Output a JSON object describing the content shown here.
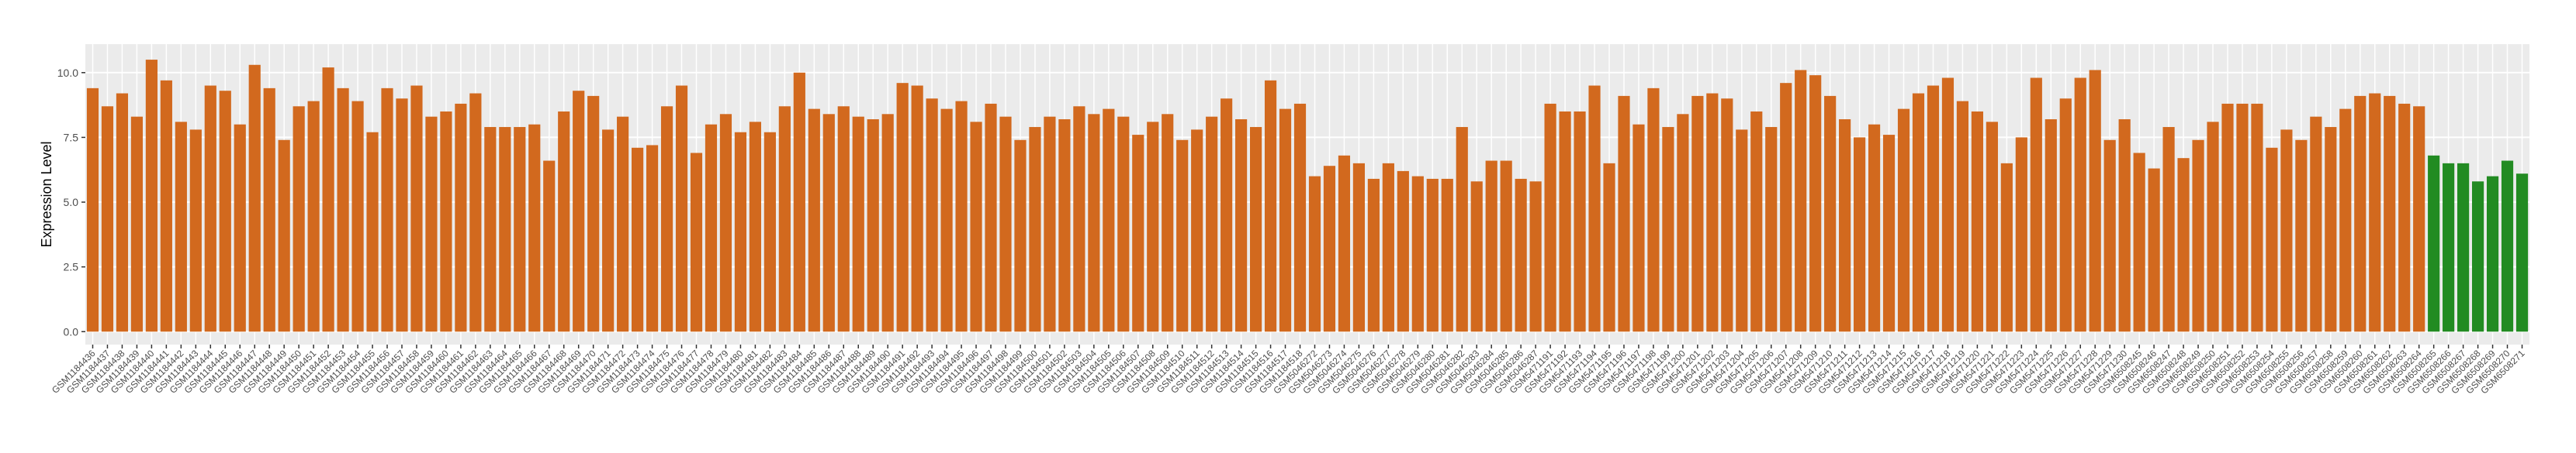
{
  "chart_data": {
    "type": "bar",
    "y_label": "Expression Level",
    "categories": [
      "GSM1184436",
      "GSM1184437",
      "GSM1184438",
      "GSM1184439",
      "GSM1184440",
      "GSM1184441",
      "GSM1184442",
      "GSM1184443",
      "GSM1184444",
      "GSM1184445",
      "GSM1184446",
      "GSM1184447",
      "GSM1184448",
      "GSM1184449",
      "GSM1184450",
      "GSM1184451",
      "GSM1184452",
      "GSM1184453",
      "GSM1184454",
      "GSM1184455",
      "GSM1184456",
      "GSM1184457",
      "GSM1184458",
      "GSM1184459",
      "GSM1184460",
      "GSM1184461",
      "GSM1184462",
      "GSM1184463",
      "GSM1184464",
      "GSM1184465",
      "GSM1184466",
      "GSM1184467",
      "GSM1184468",
      "GSM1184469",
      "GSM1184470",
      "GSM1184471",
      "GSM1184472",
      "GSM1184473",
      "GSM1184474",
      "GSM1184475",
      "GSM1184476",
      "GSM1184477",
      "GSM1184478",
      "GSM1184479",
      "GSM1184480",
      "GSM1184481",
      "GSM1184482",
      "GSM1184483",
      "GSM1184484",
      "GSM1184485",
      "GSM1184486",
      "GSM1184487",
      "GSM1184488",
      "GSM1184489",
      "GSM1184490",
      "GSM1184491",
      "GSM1184492",
      "GSM1184493",
      "GSM1184494",
      "GSM1184495",
      "GSM1184496",
      "GSM1184497",
      "GSM1184498",
      "GSM1184499",
      "GSM1184500",
      "GSM1184501",
      "GSM1184502",
      "GSM1184503",
      "GSM1184504",
      "GSM1184505",
      "GSM1184506",
      "GSM1184507",
      "GSM1184508",
      "GSM1184509",
      "GSM1184510",
      "GSM1184511",
      "GSM1184512",
      "GSM1184513",
      "GSM1184514",
      "GSM1184515",
      "GSM1184516",
      "GSM1184517",
      "GSM1184518",
      "GSM5046272",
      "GSM5046273",
      "GSM5046274",
      "GSM5046275",
      "GSM5046276",
      "GSM5046277",
      "GSM5046278",
      "GSM5046279",
      "GSM5046280",
      "GSM5046281",
      "GSM5046282",
      "GSM5046283",
      "GSM5046284",
      "GSM5046285",
      "GSM5046286",
      "GSM5046287",
      "GSM5471191",
      "GSM5471192",
      "GSM5471193",
      "GSM5471194",
      "GSM5471195",
      "GSM5471196",
      "GSM5471197",
      "GSM5471198",
      "GSM5471199",
      "GSM5471200",
      "GSM5471201",
      "GSM5471202",
      "GSM5471203",
      "GSM5471204",
      "GSM5471205",
      "GSM5471206",
      "GSM5471207",
      "GSM5471208",
      "GSM5471209",
      "GSM5471210",
      "GSM5471211",
      "GSM5471212",
      "GSM5471213",
      "GSM5471214",
      "GSM5471215",
      "GSM5471216",
      "GSM5471217",
      "GSM5471218",
      "GSM5471219",
      "GSM5471220",
      "GSM5471221",
      "GSM5471222",
      "GSM5471223",
      "GSM5471224",
      "GSM5471225",
      "GSM5471226",
      "GSM5471227",
      "GSM5471228",
      "GSM5471229",
      "GSM5471230",
      "GSM6508245",
      "GSM6508246",
      "GSM6508247",
      "GSM6508248",
      "GSM6508249",
      "GSM6508250",
      "GSM6508251",
      "GSM6508252",
      "GSM6508253",
      "GSM6508254",
      "GSM6508255",
      "GSM6508256",
      "GSM6508257",
      "GSM6508258",
      "GSM6508259",
      "GSM6508260",
      "GSM6508261",
      "GSM6508262",
      "GSM6508263",
      "GSM6508264",
      "GSM6508265",
      "GSM6508266",
      "GSM6508267",
      "GSM6508268",
      "GSM6508269",
      "GSM6508270",
      "GSM6508271"
    ],
    "values": [
      9.4,
      8.7,
      9.2,
      8.3,
      10.5,
      9.7,
      8.1,
      7.8,
      9.5,
      9.3,
      8.0,
      10.3,
      9.4,
      7.4,
      8.7,
      8.9,
      10.2,
      9.4,
      8.9,
      7.7,
      9.4,
      9.0,
      9.5,
      8.3,
      8.5,
      8.8,
      9.2,
      7.9,
      7.9,
      7.9,
      8.0,
      6.6,
      8.5,
      9.3,
      9.1,
      7.8,
      8.3,
      7.1,
      7.2,
      8.7,
      9.5,
      6.9,
      8.0,
      8.4,
      7.7,
      8.1,
      7.7,
      8.7,
      10.0,
      8.6,
      8.4,
      8.7,
      8.3,
      8.2,
      8.4,
      9.6,
      9.5,
      9.0,
      8.6,
      8.9,
      8.1,
      8.8,
      8.3,
      7.4,
      7.9,
      8.3,
      8.2,
      8.7,
      8.4,
      8.6,
      8.3,
      7.6,
      8.1,
      8.4,
      7.4,
      7.8,
      8.3,
      9.0,
      8.2,
      7.9,
      9.7,
      8.6,
      8.8,
      6.0,
      6.4,
      6.8,
      6.5,
      5.9,
      6.5,
      6.2,
      6.0,
      5.9,
      5.9,
      7.9,
      5.8,
      6.6,
      6.6,
      5.9,
      5.8,
      8.8,
      8.5,
      8.5,
      9.5,
      6.5,
      9.1,
      8.0,
      9.4,
      7.9,
      8.4,
      9.1,
      9.2,
      9.0,
      7.8,
      8.5,
      7.9,
      9.6,
      10.1,
      9.9,
      9.1,
      8.2,
      7.5,
      8.0,
      7.6,
      8.6,
      9.2,
      9.5,
      9.8,
      8.9,
      8.5,
      8.1,
      6.5,
      7.5,
      9.8,
      8.2,
      9.0,
      9.8,
      10.1,
      7.4,
      8.2,
      6.9,
      6.3,
      7.9,
      6.7,
      7.4,
      8.1,
      8.8,
      8.8,
      8.8,
      7.1,
      7.8,
      7.4,
      8.3,
      7.9,
      8.6,
      9.1,
      9.2,
      9.1,
      8.8,
      8.7,
      6.8,
      6.5,
      6.5,
      5.8,
      6.0,
      6.6,
      6.1
    ],
    "colors": [
      "#d2691e",
      "#d2691e",
      "#d2691e",
      "#d2691e",
      "#d2691e",
      "#d2691e",
      "#d2691e",
      "#d2691e",
      "#d2691e",
      "#d2691e",
      "#d2691e",
      "#d2691e",
      "#d2691e",
      "#d2691e",
      "#d2691e",
      "#d2691e",
      "#d2691e",
      "#d2691e",
      "#d2691e",
      "#d2691e",
      "#d2691e",
      "#d2691e",
      "#d2691e",
      "#d2691e",
      "#d2691e",
      "#d2691e",
      "#d2691e",
      "#d2691e",
      "#d2691e",
      "#d2691e",
      "#d2691e",
      "#d2691e",
      "#d2691e",
      "#d2691e",
      "#d2691e",
      "#d2691e",
      "#d2691e",
      "#d2691e",
      "#d2691e",
      "#d2691e",
      "#d2691e",
      "#d2691e",
      "#d2691e",
      "#d2691e",
      "#d2691e",
      "#d2691e",
      "#d2691e",
      "#d2691e",
      "#d2691e",
      "#d2691e",
      "#d2691e",
      "#d2691e",
      "#d2691e",
      "#d2691e",
      "#d2691e",
      "#d2691e",
      "#d2691e",
      "#d2691e",
      "#d2691e",
      "#d2691e",
      "#d2691e",
      "#d2691e",
      "#d2691e",
      "#d2691e",
      "#d2691e",
      "#d2691e",
      "#d2691e",
      "#d2691e",
      "#d2691e",
      "#d2691e",
      "#d2691e",
      "#d2691e",
      "#d2691e",
      "#d2691e",
      "#d2691e",
      "#d2691e",
      "#d2691e",
      "#d2691e",
      "#d2691e",
      "#d2691e",
      "#d2691e",
      "#d2691e",
      "#d2691e",
      "#d2691e",
      "#d2691e",
      "#d2691e",
      "#d2691e",
      "#d2691e",
      "#d2691e",
      "#d2691e",
      "#d2691e",
      "#d2691e",
      "#d2691e",
      "#d2691e",
      "#d2691e",
      "#d2691e",
      "#d2691e",
      "#d2691e",
      "#d2691e",
      "#d2691e",
      "#d2691e",
      "#d2691e",
      "#d2691e",
      "#d2691e",
      "#d2691e",
      "#d2691e",
      "#d2691e",
      "#d2691e",
      "#d2691e",
      "#d2691e",
      "#d2691e",
      "#d2691e",
      "#d2691e",
      "#d2691e",
      "#d2691e",
      "#d2691e",
      "#d2691e",
      "#d2691e",
      "#d2691e",
      "#d2691e",
      "#d2691e",
      "#d2691e",
      "#d2691e",
      "#d2691e",
      "#d2691e",
      "#d2691e",
      "#d2691e",
      "#d2691e",
      "#d2691e",
      "#d2691e",
      "#d2691e",
      "#d2691e",
      "#d2691e",
      "#d2691e",
      "#d2691e",
      "#d2691e",
      "#d2691e",
      "#d2691e",
      "#d2691e",
      "#d2691e",
      "#d2691e",
      "#d2691e",
      "#d2691e",
      "#d2691e",
      "#d2691e",
      "#d2691e",
      "#d2691e",
      "#d2691e",
      "#d2691e",
      "#d2691e",
      "#d2691e",
      "#d2691e",
      "#d2691e",
      "#d2691e",
      "#d2691e",
      "#d2691e",
      "#d2691e",
      "#d2691e",
      "#d2691e",
      "#228b22",
      "#228b22",
      "#228b22",
      "#228b22",
      "#228b22",
      "#228b22",
      "#228b22"
    ],
    "ylim": [
      -0.5,
      11.1
    ],
    "yticks": [
      {
        "value": 0,
        "label": "0.0"
      },
      2.5,
      {
        "value": 5,
        "label": "5.0"
      },
      7.5,
      {
        "value": 10,
        "label": "10.0"
      }
    ],
    "grid": true,
    "panel_color": "#ebebeb"
  }
}
